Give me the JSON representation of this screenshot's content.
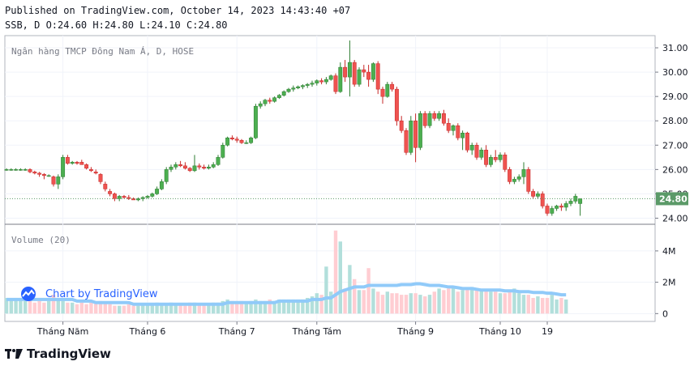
{
  "header": {
    "published": "Published on TradingView.com, October 14, 2023 14:43:40 +07",
    "ohlc": "SSB, D O:24.60 H:24.80 L:24.10 C:24.80"
  },
  "watermark": {
    "label": "Chart by TradingView"
  },
  "brand": {
    "label": "TradingView"
  },
  "colors": {
    "up": "#26a69a",
    "upBody": "#4caf50",
    "down": "#ef5350",
    "volUp": "#b2dfdb",
    "volDown": "#ffcdd2",
    "ma": "#90caf9",
    "last": "#5b9a68"
  },
  "chart_data": [
    {
      "type": "candlestick",
      "title": "Ngân hàng TMCP Đông Nam Á, D, HOSE",
      "y_ticks": [
        "24.00",
        "25.00",
        "26.00",
        "27.00",
        "28.00",
        "29.00",
        "30.00",
        "31.00"
      ],
      "ylim": [
        23.75,
        31.5
      ],
      "x_ticks": [
        {
          "label": "Tháng Năm",
          "index": 12
        },
        {
          "label": "Tháng 6",
          "index": 30
        },
        {
          "label": "Tháng 7",
          "index": 49
        },
        {
          "label": "Tháng Tám",
          "index": 66
        },
        {
          "label": "Tháng 9",
          "index": 87
        },
        {
          "label": "Tháng 10",
          "index": 105
        },
        {
          "label": "19",
          "index": 115
        }
      ],
      "last_price": "24.80",
      "grid": true,
      "ohlc": [
        [
          26.0,
          26.05,
          25.95,
          26.0
        ],
        [
          26.0,
          26.05,
          25.95,
          26.0
        ],
        [
          26.0,
          26.05,
          25.95,
          26.0
        ],
        [
          26.0,
          26.05,
          25.95,
          26.0
        ],
        [
          26.0,
          26.05,
          25.95,
          26.0
        ],
        [
          26.0,
          26.05,
          25.85,
          25.9
        ],
        [
          25.9,
          25.95,
          25.8,
          25.85
        ],
        [
          25.85,
          25.9,
          25.7,
          25.8
        ],
        [
          25.8,
          25.85,
          25.6,
          25.75
        ],
        [
          25.75,
          25.8,
          25.7,
          25.75
        ],
        [
          25.7,
          25.75,
          25.3,
          25.4
        ],
        [
          25.4,
          25.8,
          25.2,
          25.7
        ],
        [
          25.7,
          26.6,
          25.6,
          26.5
        ],
        [
          26.5,
          26.6,
          26.2,
          26.25
        ],
        [
          26.25,
          26.35,
          26.2,
          26.3
        ],
        [
          26.3,
          26.35,
          26.2,
          26.25
        ],
        [
          26.3,
          26.4,
          26.2,
          26.2
        ],
        [
          26.2,
          26.25,
          26.0,
          26.05
        ],
        [
          26.0,
          26.1,
          25.9,
          25.95
        ],
        [
          25.9,
          26.0,
          25.8,
          25.85
        ],
        [
          25.8,
          25.85,
          25.4,
          25.5
        ],
        [
          25.4,
          25.5,
          25.1,
          25.2
        ],
        [
          25.1,
          25.2,
          24.9,
          25.0
        ],
        [
          25.0,
          25.05,
          24.7,
          24.8
        ],
        [
          24.8,
          24.95,
          24.7,
          24.9
        ],
        [
          24.9,
          24.95,
          24.8,
          24.85
        ],
        [
          24.85,
          24.95,
          24.75,
          24.8
        ],
        [
          24.8,
          24.85,
          24.75,
          24.75
        ],
        [
          24.75,
          24.85,
          24.7,
          24.8
        ],
        [
          24.8,
          24.9,
          24.7,
          24.85
        ],
        [
          24.85,
          24.95,
          24.8,
          24.9
        ],
        [
          24.9,
          25.05,
          24.85,
          25.0
        ],
        [
          25.0,
          25.3,
          24.95,
          25.2
        ],
        [
          25.2,
          25.6,
          25.15,
          25.5
        ],
        [
          25.5,
          26.1,
          25.4,
          26.0
        ],
        [
          26.0,
          26.2,
          25.9,
          26.1
        ],
        [
          26.1,
          26.3,
          26.0,
          26.2
        ],
        [
          26.2,
          26.35,
          26.1,
          26.15
        ],
        [
          26.15,
          26.3,
          26.0,
          26.05
        ],
        [
          26.05,
          26.1,
          25.9,
          25.95
        ],
        [
          25.95,
          26.6,
          25.9,
          26.15
        ],
        [
          26.15,
          26.25,
          26.0,
          26.1
        ],
        [
          26.1,
          26.2,
          26.0,
          26.05
        ],
        [
          26.05,
          26.2,
          26.0,
          26.1
        ],
        [
          26.1,
          26.3,
          26.05,
          26.2
        ],
        [
          26.2,
          26.6,
          26.15,
          26.5
        ],
        [
          26.5,
          27.1,
          26.45,
          27.0
        ],
        [
          27.0,
          27.35,
          26.95,
          27.3
        ],
        [
          27.3,
          27.4,
          27.2,
          27.25
        ],
        [
          27.25,
          27.35,
          27.1,
          27.2
        ],
        [
          27.2,
          27.25,
          27.05,
          27.1
        ],
        [
          27.1,
          27.2,
          27.05,
          27.1
        ],
        [
          27.1,
          27.35,
          27.05,
          27.3
        ],
        [
          27.3,
          28.7,
          27.25,
          28.6
        ],
        [
          28.6,
          28.8,
          28.5,
          28.7
        ],
        [
          28.7,
          28.9,
          28.6,
          28.85
        ],
        [
          28.85,
          28.95,
          28.7,
          28.8
        ],
        [
          28.8,
          29.0,
          28.75,
          28.95
        ],
        [
          28.95,
          29.1,
          28.9,
          29.05
        ],
        [
          29.05,
          29.25,
          29.0,
          29.2
        ],
        [
          29.2,
          29.35,
          29.15,
          29.3
        ],
        [
          29.3,
          29.45,
          29.2,
          29.35
        ],
        [
          29.35,
          29.45,
          29.3,
          29.4
        ],
        [
          29.4,
          29.5,
          29.3,
          29.45
        ],
        [
          29.45,
          29.55,
          29.35,
          29.5
        ],
        [
          29.5,
          29.65,
          29.4,
          29.55
        ],
        [
          29.55,
          29.7,
          29.45,
          29.65
        ],
        [
          29.65,
          29.75,
          29.5,
          29.6
        ],
        [
          29.6,
          29.8,
          29.5,
          29.7
        ],
        [
          29.7,
          29.9,
          29.65,
          29.85
        ],
        [
          29.85,
          29.95,
          29.1,
          29.2
        ],
        [
          29.2,
          30.4,
          29.15,
          30.2
        ],
        [
          30.2,
          30.5,
          29.6,
          29.8
        ],
        [
          29.8,
          31.3,
          29.0,
          30.4
        ],
        [
          30.4,
          30.5,
          29.4,
          29.5
        ],
        [
          29.5,
          30.2,
          29.4,
          30.1
        ],
        [
          30.1,
          30.3,
          29.8,
          30.0
        ],
        [
          30.0,
          30.3,
          29.4,
          29.7
        ],
        [
          29.7,
          30.4,
          29.6,
          30.35
        ],
        [
          30.35,
          30.45,
          29.1,
          29.3
        ],
        [
          29.3,
          29.4,
          28.7,
          29.0
        ],
        [
          29.0,
          29.6,
          28.95,
          29.5
        ],
        [
          29.5,
          29.6,
          29.2,
          29.3
        ],
        [
          29.3,
          29.4,
          27.8,
          28.0
        ],
        [
          28.0,
          28.2,
          27.5,
          27.6
        ],
        [
          27.6,
          27.7,
          26.6,
          26.7
        ],
        [
          26.7,
          28.2,
          26.6,
          28.0
        ],
        [
          28.0,
          28.3,
          26.3,
          26.9
        ],
        [
          26.9,
          28.4,
          26.8,
          28.3
        ],
        [
          28.3,
          28.4,
          27.7,
          27.8
        ],
        [
          27.8,
          28.4,
          27.7,
          28.3
        ],
        [
          28.3,
          28.4,
          28.0,
          28.1
        ],
        [
          28.1,
          28.4,
          28.0,
          28.3
        ],
        [
          28.3,
          28.45,
          27.8,
          27.9
        ],
        [
          27.9,
          28.1,
          27.5,
          27.6
        ],
        [
          27.6,
          27.85,
          27.4,
          27.8
        ],
        [
          27.8,
          27.9,
          27.2,
          27.3
        ],
        [
          27.3,
          27.6,
          26.8,
          27.5
        ],
        [
          27.5,
          27.55,
          26.7,
          26.8
        ],
        [
          26.8,
          27.1,
          26.6,
          27.0
        ],
        [
          27.0,
          27.1,
          26.4,
          26.5
        ],
        [
          26.5,
          26.9,
          26.4,
          26.8
        ],
        [
          26.8,
          27.0,
          26.1,
          26.2
        ],
        [
          26.2,
          26.6,
          26.1,
          26.5
        ],
        [
          26.5,
          26.8,
          26.3,
          26.4
        ],
        [
          26.4,
          26.7,
          26.3,
          26.6
        ],
        [
          26.6,
          26.7,
          25.9,
          26.0
        ],
        [
          26.0,
          26.1,
          25.4,
          25.5
        ],
        [
          25.5,
          25.7,
          25.4,
          25.6
        ],
        [
          25.6,
          25.8,
          25.5,
          25.7
        ],
        [
          25.7,
          26.3,
          25.4,
          26.0
        ],
        [
          26.0,
          26.1,
          25.0,
          25.1
        ],
        [
          25.1,
          25.2,
          24.8,
          24.9
        ],
        [
          24.9,
          25.1,
          24.8,
          25.0
        ],
        [
          25.0,
          25.1,
          24.4,
          24.5
        ],
        [
          24.5,
          24.6,
          24.1,
          24.2
        ],
        [
          24.2,
          24.5,
          24.1,
          24.4
        ],
        [
          24.4,
          24.55,
          24.3,
          24.5
        ],
        [
          24.5,
          24.6,
          24.3,
          24.45
        ],
        [
          24.45,
          24.7,
          24.3,
          24.6
        ],
        [
          24.6,
          24.8,
          24.5,
          24.7
        ],
        [
          24.7,
          25.0,
          24.6,
          24.9
        ],
        [
          24.6,
          24.8,
          24.1,
          24.8
        ]
      ]
    },
    {
      "type": "bar",
      "title": "Volume (20)",
      "y_ticks": [
        "0",
        "2M",
        "4M"
      ],
      "ylim": [
        -0.5,
        5.7
      ],
      "volumes_m": [
        1.0,
        0.9,
        1.0,
        1.0,
        0.8,
        0.8,
        0.7,
        0.8,
        0.7,
        0.8,
        1.2,
        1.0,
        0.8,
        0.7,
        0.7,
        0.6,
        0.7,
        0.6,
        0.7,
        0.7,
        0.8,
        0.7,
        0.6,
        0.5,
        0.5,
        0.5,
        0.6,
        0.5,
        0.5,
        0.6,
        0.6,
        0.6,
        0.7,
        0.6,
        0.6,
        0.7,
        0.6,
        0.6,
        0.5,
        0.7,
        0.7,
        0.6,
        0.6,
        0.6,
        0.7,
        0.7,
        0.8,
        0.9,
        0.8,
        0.7,
        0.8,
        0.7,
        0.8,
        0.9,
        0.8,
        0.8,
        0.9,
        0.8,
        0.9,
        0.9,
        0.9,
        0.9,
        0.9,
        0.9,
        1.0,
        1.1,
        1.3,
        1.2,
        3.0,
        1.4,
        5.3,
        4.6,
        1.6,
        3.1,
        2.2,
        1.5,
        1.5,
        2.9,
        1.6,
        1.4,
        1.2,
        1.4,
        1.3,
        1.3,
        1.2,
        1.2,
        1.3,
        1.3,
        1.2,
        1.1,
        1.2,
        1.4,
        1.6,
        1.5,
        1.6,
        1.7,
        1.4,
        1.5,
        1.6,
        1.7,
        1.6,
        1.5,
        1.5,
        1.4,
        1.4,
        1.3,
        1.3,
        1.4,
        1.6,
        1.3,
        1.2,
        1.2,
        1.0,
        1.1,
        1.0,
        1.0,
        1.2,
        0.9,
        1.0,
        0.9
      ],
      "ma_m": [
        0.9,
        0.9,
        0.9,
        0.9,
        0.9,
        0.9,
        0.9,
        0.9,
        0.9,
        0.9,
        0.9,
        0.9,
        0.9,
        0.9,
        0.9,
        0.8,
        0.8,
        0.8,
        0.8,
        0.7,
        0.7,
        0.7,
        0.7,
        0.7,
        0.7,
        0.7,
        0.7,
        0.6,
        0.6,
        0.6,
        0.6,
        0.6,
        0.6,
        0.6,
        0.6,
        0.6,
        0.6,
        0.6,
        0.6,
        0.6,
        0.6,
        0.6,
        0.6,
        0.6,
        0.6,
        0.6,
        0.6,
        0.7,
        0.7,
        0.7,
        0.7,
        0.7,
        0.7,
        0.7,
        0.7,
        0.7,
        0.7,
        0.7,
        0.8,
        0.8,
        0.8,
        0.8,
        0.8,
        0.8,
        0.8,
        0.9,
        0.9,
        0.9,
        1.0,
        1.0,
        1.2,
        1.4,
        1.5,
        1.6,
        1.7,
        1.7,
        1.7,
        1.8,
        1.8,
        1.8,
        1.8,
        1.8,
        1.8,
        1.8,
        1.85,
        1.85,
        1.85,
        1.9,
        1.9,
        1.85,
        1.8,
        1.8,
        1.8,
        1.75,
        1.7,
        1.7,
        1.65,
        1.6,
        1.6,
        1.6,
        1.55,
        1.5,
        1.5,
        1.5,
        1.5,
        1.5,
        1.45,
        1.45,
        1.45,
        1.4,
        1.4,
        1.4,
        1.35,
        1.35,
        1.35,
        1.3,
        1.3,
        1.25,
        1.2,
        1.2
      ]
    }
  ]
}
